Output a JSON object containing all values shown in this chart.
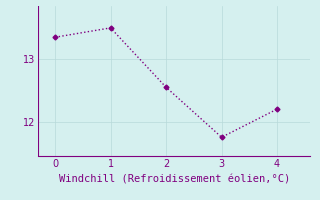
{
  "x": [
    0,
    1,
    2,
    3,
    4
  ],
  "y": [
    13.35,
    13.5,
    12.55,
    11.75,
    12.2
  ],
  "line_color": "#800080",
  "marker": "D",
  "marker_size": 2.5,
  "background_color": "#d5f0ef",
  "xlabel": "Windchill (Refroidissement éolien,°C)",
  "xlabel_color": "#800080",
  "xlabel_fontsize": 7.5,
  "tick_color": "#800080",
  "tick_fontsize": 7,
  "yticks": [
    12,
    13
  ],
  "xticks": [
    0,
    1,
    2,
    3,
    4
  ],
  "xlim": [
    -0.3,
    4.6
  ],
  "ylim": [
    11.45,
    13.85
  ],
  "grid_color": "#b8dada",
  "spine_color": "#800080"
}
